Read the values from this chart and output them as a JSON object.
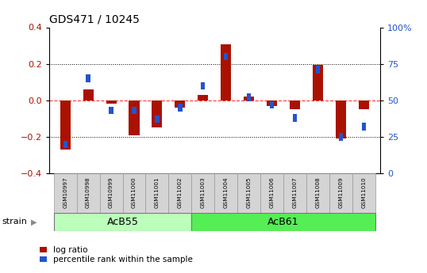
{
  "title": "GDS471 / 10245",
  "samples": [
    "GSM10997",
    "GSM10998",
    "GSM10999",
    "GSM11000",
    "GSM11001",
    "GSM11002",
    "GSM11003",
    "GSM11004",
    "GSM11005",
    "GSM11006",
    "GSM11007",
    "GSM11008",
    "GSM11009",
    "GSM11010"
  ],
  "log_ratio": [
    -0.27,
    0.06,
    -0.02,
    -0.19,
    -0.15,
    -0.04,
    0.03,
    0.305,
    0.02,
    -0.03,
    -0.05,
    0.195,
    -0.21,
    -0.05
  ],
  "percentile_rank": [
    20,
    65,
    43,
    43,
    37,
    45,
    60,
    80,
    52,
    47,
    38,
    71,
    25,
    32
  ],
  "strain_groups": [
    {
      "label": "AcB55",
      "start": 0,
      "end": 5,
      "color": "#bbffbb"
    },
    {
      "label": "AcB61",
      "start": 6,
      "end": 13,
      "color": "#55ee55"
    }
  ],
  "ylim_left": [
    -0.4,
    0.4
  ],
  "ylim_right": [
    0,
    100
  ],
  "yticks_left": [
    -0.4,
    -0.2,
    0.0,
    0.2,
    0.4
  ],
  "yticks_right": [
    0,
    25,
    50,
    75,
    100
  ],
  "hlines_dotted": [
    0.2,
    -0.2
  ],
  "red_color": "#aa1100",
  "blue_color": "#2255cc",
  "legend_red": "log ratio",
  "legend_blue": "percentile rank within the sample",
  "strain_label": "strain"
}
